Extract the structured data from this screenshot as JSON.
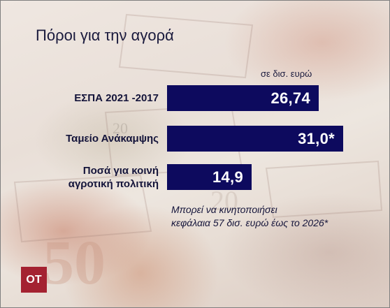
{
  "chart_data": {
    "type": "bar",
    "title": "Πόροι για την αγορά",
    "unit_label": "σε δισ. ευρώ",
    "categories": [
      [
        "ΕΣΠΑ 2021 -2017"
      ],
      [
        "Ταμείο Ανάκαμψης"
      ],
      [
        "Ποσά για κοινή",
        "αγροτική πολιτική"
      ]
    ],
    "values": [
      26.74,
      31.0,
      14.9
    ],
    "value_labels": [
      "26,74",
      "31,0*",
      "14,9"
    ],
    "xlim": [
      0,
      31.0
    ],
    "orientation": "horizontal",
    "bar_color": "#0d0a5e",
    "footnote": [
      "Μπορεί να κινητοποιήσει",
      "κεφάλαια 57 δισ. ευρώ έως το 2026*"
    ]
  },
  "logo": {
    "text": "ΟΤ",
    "color": "#a42231"
  }
}
